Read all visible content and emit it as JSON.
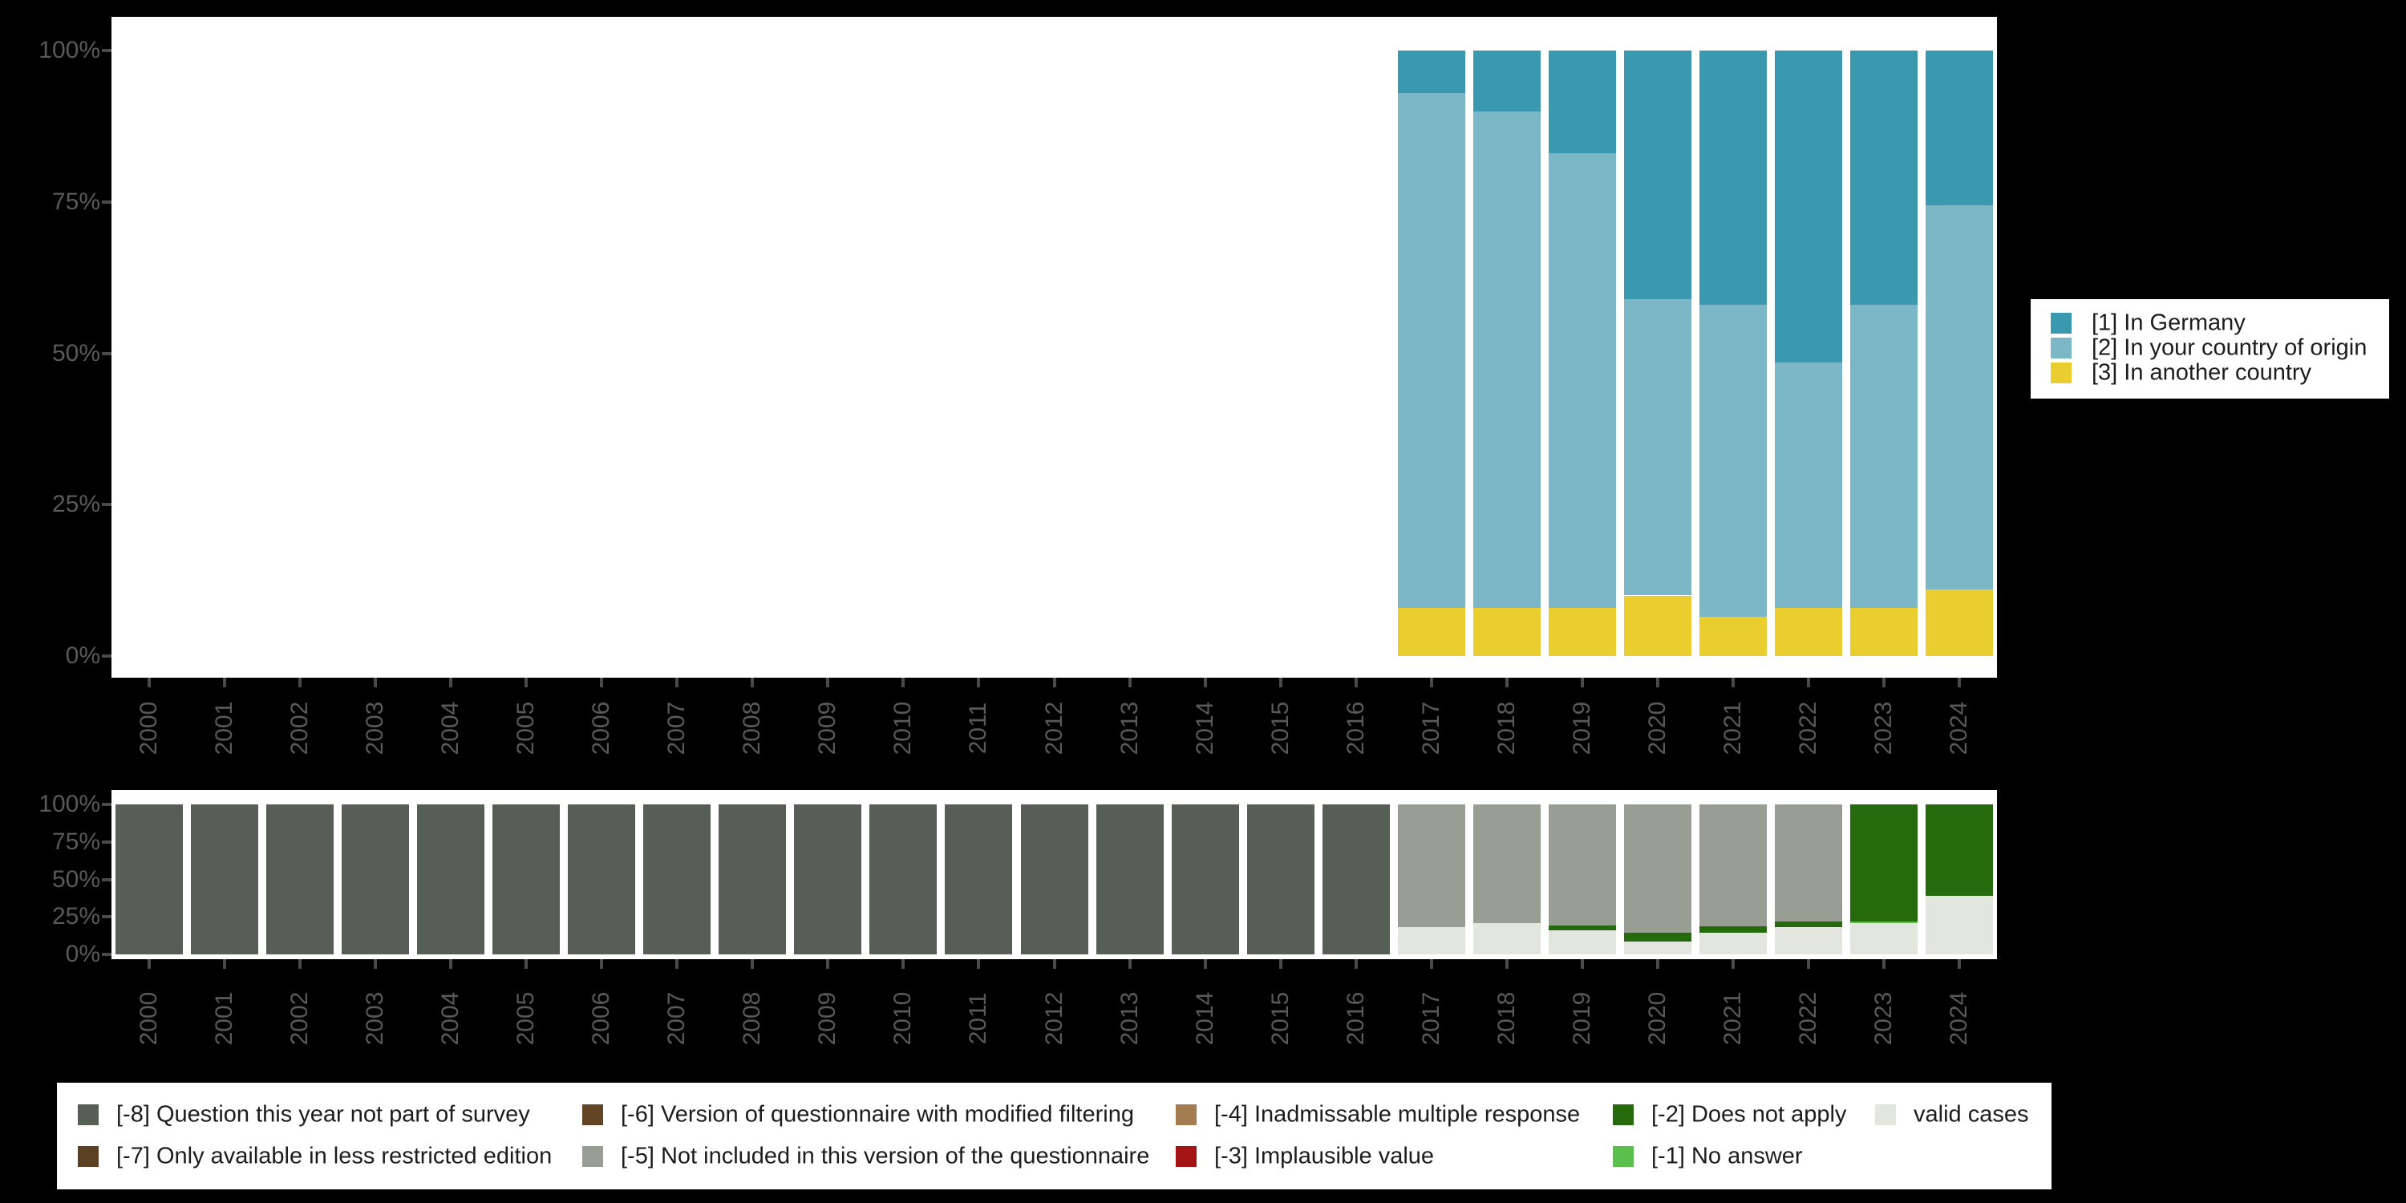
{
  "background_color": "#000000",
  "panel_color": "#ffffff",
  "axis": {
    "tick_label_color": "#595959",
    "tick_mark_color": "#4a4a4a",
    "ytick_labels": [
      "0%",
      "25%",
      "50%",
      "75%",
      "100%"
    ]
  },
  "chart_data": [
    {
      "id": "destination-chart",
      "type": "bar",
      "stacked": true,
      "title": "",
      "xlabel": "",
      "ylabel": "",
      "ylim": [
        0,
        100
      ],
      "grid": false,
      "legend_position": "right",
      "categories": [
        "2000",
        "2001",
        "2002",
        "2003",
        "2004",
        "2005",
        "2006",
        "2007",
        "2008",
        "2009",
        "2010",
        "2011",
        "2012",
        "2013",
        "2014",
        "2015",
        "2016",
        "2017",
        "2018",
        "2019",
        "2020",
        "2021",
        "2022",
        "2023",
        "2024"
      ],
      "series": [
        {
          "name": "[1] In Germany",
          "color": "#3a99af",
          "values": [
            0,
            0,
            0,
            0,
            0,
            0,
            0,
            0,
            0,
            0,
            0,
            0,
            0,
            0,
            0,
            0,
            0,
            7,
            10,
            17,
            41,
            42,
            51.5,
            42,
            25.5
          ]
        },
        {
          "name": "[2] In your country of origin",
          "color": "#7cb7c7",
          "values": [
            0,
            0,
            0,
            0,
            0,
            0,
            0,
            0,
            0,
            0,
            0,
            0,
            0,
            0,
            0,
            0,
            0,
            85,
            82,
            75,
            49,
            51.5,
            40.5,
            50,
            63.5
          ]
        },
        {
          "name": "[3] In another country",
          "color": "#eacd2e",
          "values": [
            0,
            0,
            0,
            0,
            0,
            0,
            0,
            0,
            0,
            0,
            0,
            0,
            0,
            0,
            0,
            0,
            0,
            8,
            8,
            8,
            10,
            6.5,
            8,
            8,
            11
          ]
        }
      ]
    },
    {
      "id": "missings-chart",
      "type": "bar",
      "stacked": true,
      "title": "",
      "xlabel": "",
      "ylabel": "",
      "ylim": [
        0,
        100
      ],
      "grid": false,
      "legend_position": "bottom",
      "categories": [
        "2000",
        "2001",
        "2002",
        "2003",
        "2004",
        "2005",
        "2006",
        "2007",
        "2008",
        "2009",
        "2010",
        "2011",
        "2012",
        "2013",
        "2014",
        "2015",
        "2016",
        "2017",
        "2018",
        "2019",
        "2020",
        "2021",
        "2022",
        "2023",
        "2024"
      ],
      "series": [
        {
          "name": "[-8] Question this year not part of survey",
          "color": "#565e56",
          "values": [
            100,
            100,
            100,
            100,
            100,
            100,
            100,
            100,
            100,
            100,
            100,
            100,
            100,
            100,
            100,
            100,
            100,
            0,
            0,
            0,
            0,
            0,
            0,
            0,
            0
          ]
        },
        {
          "name": "[-7] Only available in less restricted edition",
          "color": "#5c4023",
          "values": [
            0,
            0,
            0,
            0,
            0,
            0,
            0,
            0,
            0,
            0,
            0,
            0,
            0,
            0,
            0,
            0,
            0,
            0,
            0,
            0,
            0,
            0,
            0,
            0,
            0
          ]
        },
        {
          "name": "[-6] Version of questionnaire with modified filtering",
          "color": "#634526",
          "values": [
            0,
            0,
            0,
            0,
            0,
            0,
            0,
            0,
            0,
            0,
            0,
            0,
            0,
            0,
            0,
            0,
            0,
            0,
            0,
            0,
            0,
            0,
            0,
            0,
            0
          ]
        },
        {
          "name": "[-5] Not included in this version of the questionnaire",
          "color": "#999e95",
          "values": [
            0,
            0,
            0,
            0,
            0,
            0,
            0,
            0,
            0,
            0,
            0,
            0,
            0,
            0,
            0,
            0,
            0,
            82,
            79,
            81,
            85.5,
            81.5,
            78,
            0,
            0
          ]
        },
        {
          "name": "[-4] Inadmissable multiple response",
          "color": "#a37d4f",
          "values": [
            0,
            0,
            0,
            0,
            0,
            0,
            0,
            0,
            0,
            0,
            0,
            0,
            0,
            0,
            0,
            0,
            0,
            0,
            0,
            0,
            0,
            0,
            0,
            0,
            0
          ]
        },
        {
          "name": "[-3] Implausible value",
          "color": "#a41414",
          "values": [
            0,
            0,
            0,
            0,
            0,
            0,
            0,
            0,
            0,
            0,
            0,
            0,
            0,
            0,
            0,
            0,
            0,
            0,
            0,
            0,
            0,
            0,
            0,
            0,
            0
          ]
        },
        {
          "name": "[-2] Does not apply",
          "color": "#266a0e",
          "values": [
            0,
            0,
            0,
            0,
            0,
            0,
            0,
            0,
            0,
            0,
            0,
            0,
            0,
            0,
            0,
            0,
            0,
            0,
            0,
            3,
            6,
            4,
            4,
            78,
            61
          ]
        },
        {
          "name": "[-1] No answer",
          "color": "#5bbf4d",
          "values": [
            0,
            0,
            0,
            0,
            0,
            0,
            0,
            0,
            0,
            0,
            0,
            0,
            0,
            0,
            0,
            0,
            0,
            0,
            0,
            0,
            0,
            0,
            0,
            1,
            0
          ]
        },
        {
          "name": "valid cases",
          "color": "#e2e6df",
          "values": [
            0,
            0,
            0,
            0,
            0,
            0,
            0,
            0,
            0,
            0,
            0,
            0,
            0,
            0,
            0,
            0,
            0,
            18,
            21,
            16,
            8.5,
            14.5,
            18,
            21,
            39
          ]
        }
      ]
    }
  ]
}
